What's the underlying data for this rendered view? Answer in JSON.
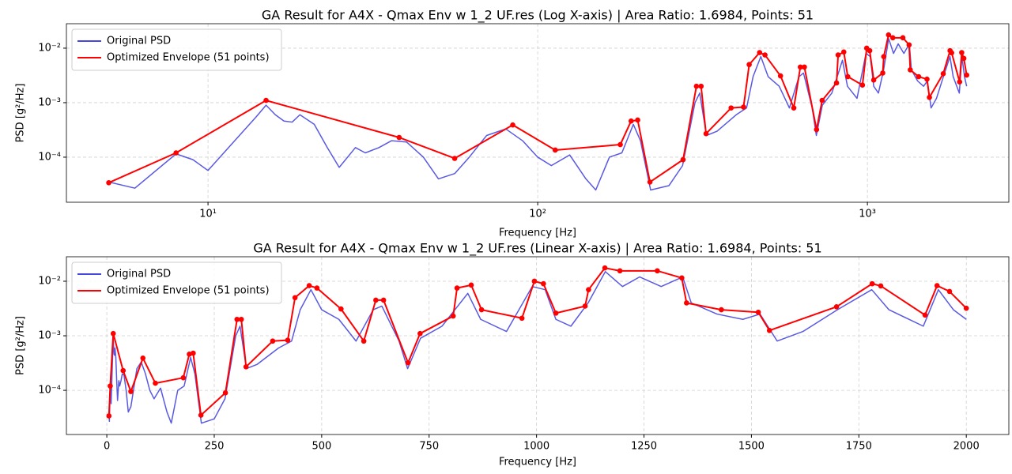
{
  "chart_data": [
    {
      "type": "line",
      "title": "GA Result for A4X - Qmax Env w 1_2 UF.res (Log X-axis) | Area Ratio: 1.6984, Points: 51",
      "x_label": "Frequency [Hz]",
      "y_label": "PSD [g²/Hz]",
      "x_scale": "log",
      "y_scale": "log",
      "grid": true,
      "legend": "upper left",
      "xlim": [
        3.72,
        2685
      ],
      "ylim": [
        1.49e-05,
        0.0281
      ],
      "xticks": [
        {
          "value": 10,
          "label": "10¹"
        },
        {
          "value": 100,
          "label": "10²"
        },
        {
          "value": 1000,
          "label": "10³"
        }
      ],
      "yticks": [
        {
          "value": 0.0001,
          "label": "10⁻⁴"
        },
        {
          "value": 0.001,
          "label": "10⁻³"
        },
        {
          "value": 0.01,
          "label": "10⁻²"
        }
      ],
      "series": [
        {
          "name": "Original PSD",
          "color": "#4747e0",
          "marker": false,
          "x": [
            5,
            6,
            8,
            9,
            10,
            14,
            15,
            16,
            17,
            18,
            19,
            21,
            23,
            25,
            28,
            30,
            33,
            36,
            40,
            45,
            50,
            56,
            62,
            70,
            80,
            90,
            100,
            110,
            125,
            140,
            150,
            165,
            180,
            195,
            205,
            220,
            250,
            275,
            300,
            310,
            325,
            350,
            400,
            430,
            450,
            475,
            500,
            540,
            580,
            620,
            640,
            680,
            700,
            730,
            780,
            810,
            840,
            870,
            930,
            990,
            1020,
            1045,
            1080,
            1120,
            1160,
            1200,
            1240,
            1290,
            1340,
            1360,
            1420,
            1480,
            1520,
            1560,
            1620,
            1700,
            1780,
            1820,
            1900,
            1935,
            1970,
            2000
          ],
          "values": [
            3.5e-05,
            2.7e-05,
            0.000115,
            9e-05,
            5.7e-05,
            0.00055,
            0.0009,
            0.0006,
            0.00046,
            0.00044,
            0.0006,
            0.0004,
            0.00015,
            6.5e-05,
            0.00015,
            0.00012,
            0.00015,
            0.0002,
            0.00019,
            0.0001,
            4e-05,
            5e-05,
            0.0001,
            0.00025,
            0.00033,
            0.0002,
            0.0001,
            7e-05,
            0.00011,
            4e-05,
            2.5e-05,
            0.0001,
            0.00012,
            0.0004,
            0.0002,
            2.5e-05,
            3e-05,
            7e-05,
            0.001,
            0.0015,
            0.00025,
            0.0003,
            0.0006,
            0.0008,
            0.003,
            0.007,
            0.003,
            0.002,
            0.0008,
            0.003,
            0.0035,
            0.0008,
            0.00025,
            0.0009,
            0.0015,
            0.003,
            0.006,
            0.002,
            0.0012,
            0.008,
            0.007,
            0.002,
            0.0015,
            0.004,
            0.015,
            0.008,
            0.012,
            0.008,
            0.012,
            0.004,
            0.0025,
            0.002,
            0.0025,
            0.0008,
            0.0012,
            0.003,
            0.007,
            0.003,
            0.0015,
            0.007,
            0.003,
            0.002
          ]
        },
        {
          "name": "Optimized Envelope (51 points)",
          "color": "#ff0000",
          "marker": true,
          "x": [
            5,
            8,
            15,
            38,
            56,
            84,
            113,
            178,
            192,
            201,
            219,
            276,
            303,
            313,
            324,
            386,
            421,
            438,
            471,
            489,
            545,
            598,
            626,
            644,
            701,
            729,
            806,
            815,
            848,
            872,
            966,
            995,
            1016,
            1045,
            1113,
            1121,
            1159,
            1194,
            1281,
            1338,
            1349,
            1430,
            1516,
            1542,
            1698,
            1781,
            1801,
            1904,
            1932,
            1961,
            2000
          ],
          "values": [
            3.4e-05,
            0.00012,
            0.0011,
            0.00023,
            9.5e-05,
            0.00039,
            0.000135,
            0.00017,
            0.00046,
            0.00048,
            3.5e-05,
            9e-05,
            0.002,
            0.002,
            0.00027,
            0.0008,
            0.00083,
            0.005,
            0.0083,
            0.0075,
            0.0031,
            0.0008,
            0.0045,
            0.0045,
            0.00032,
            0.0011,
            0.0023,
            0.0075,
            0.0085,
            0.003,
            0.0021,
            0.01,
            0.009,
            0.0026,
            0.0035,
            0.007,
            0.0175,
            0.0155,
            0.0155,
            0.0115,
            0.004,
            0.003,
            0.0027,
            0.00125,
            0.0034,
            0.009,
            0.0082,
            0.0024,
            0.0083,
            0.0065,
            0.0032
          ]
        }
      ]
    },
    {
      "type": "line",
      "title": "GA Result for A4X - Qmax Env w 1_2 UF.res (Linear X-axis) | Area Ratio: 1.6984, Points: 51",
      "x_label": "Frequency [Hz]",
      "y_label": "PSD [g²/Hz]",
      "x_scale": "linear",
      "y_scale": "log",
      "grid": true,
      "legend": "upper left",
      "xlim": [
        -94,
        2099
      ],
      "ylim": [
        1.55e-05,
        0.0281
      ],
      "xticks": [
        0,
        250,
        500,
        750,
        1000,
        1250,
        1500,
        1750,
        2000
      ],
      "yticks": [
        {
          "value": 0.0001,
          "label": "10⁻⁴"
        },
        {
          "value": 0.001,
          "label": "10⁻³"
        },
        {
          "value": 0.01,
          "label": "10⁻²"
        }
      ],
      "series": [
        {
          "name": "Original PSD",
          "color": "#4747e0",
          "marker": false,
          "x": [
            5,
            6,
            8,
            9,
            10,
            14,
            15,
            16,
            17,
            18,
            19,
            21,
            23,
            25,
            28,
            30,
            33,
            36,
            40,
            45,
            50,
            56,
            62,
            70,
            80,
            90,
            100,
            110,
            125,
            140,
            150,
            165,
            180,
            195,
            205,
            220,
            250,
            275,
            300,
            310,
            325,
            350,
            400,
            430,
            450,
            475,
            500,
            540,
            580,
            620,
            640,
            680,
            700,
            730,
            780,
            810,
            840,
            870,
            930,
            990,
            1020,
            1045,
            1080,
            1120,
            1160,
            1200,
            1240,
            1290,
            1340,
            1360,
            1420,
            1480,
            1520,
            1560,
            1620,
            1700,
            1780,
            1820,
            1900,
            1935,
            1970,
            2000
          ],
          "values": [
            3.5e-05,
            2.7e-05,
            0.000115,
            9e-05,
            5.7e-05,
            0.00055,
            0.0009,
            0.0006,
            0.00046,
            0.00044,
            0.0006,
            0.0004,
            0.00015,
            6.5e-05,
            0.00015,
            0.00012,
            0.00015,
            0.0002,
            0.00019,
            0.0001,
            4e-05,
            5e-05,
            0.0001,
            0.00025,
            0.00033,
            0.0002,
            0.0001,
            7e-05,
            0.00011,
            4e-05,
            2.5e-05,
            0.0001,
            0.00012,
            0.0004,
            0.0002,
            2.5e-05,
            3e-05,
            7e-05,
            0.001,
            0.0015,
            0.00025,
            0.0003,
            0.0006,
            0.0008,
            0.003,
            0.007,
            0.003,
            0.002,
            0.0008,
            0.003,
            0.0035,
            0.0008,
            0.00025,
            0.0009,
            0.0015,
            0.003,
            0.006,
            0.002,
            0.0012,
            0.008,
            0.007,
            0.002,
            0.0015,
            0.004,
            0.015,
            0.008,
            0.012,
            0.008,
            0.012,
            0.004,
            0.0025,
            0.002,
            0.0025,
            0.0008,
            0.0012,
            0.003,
            0.007,
            0.003,
            0.0015,
            0.007,
            0.003,
            0.002
          ]
        },
        {
          "name": "Optimized Envelope (51 points)",
          "color": "#ff0000",
          "marker": true,
          "x": [
            5,
            8,
            15,
            38,
            56,
            84,
            113,
            178,
            192,
            201,
            219,
            276,
            303,
            313,
            324,
            386,
            421,
            438,
            471,
            489,
            545,
            598,
            626,
            644,
            701,
            729,
            806,
            815,
            848,
            872,
            966,
            995,
            1016,
            1045,
            1113,
            1121,
            1159,
            1194,
            1281,
            1338,
            1349,
            1430,
            1516,
            1542,
            1698,
            1781,
            1801,
            1904,
            1932,
            1961,
            2000
          ],
          "values": [
            3.4e-05,
            0.00012,
            0.0011,
            0.00023,
            9.5e-05,
            0.00039,
            0.000135,
            0.00017,
            0.00046,
            0.00048,
            3.5e-05,
            9e-05,
            0.002,
            0.002,
            0.00027,
            0.0008,
            0.00083,
            0.005,
            0.0083,
            0.0075,
            0.0031,
            0.0008,
            0.0045,
            0.0045,
            0.00032,
            0.0011,
            0.0023,
            0.0075,
            0.0085,
            0.003,
            0.0021,
            0.01,
            0.009,
            0.0026,
            0.0035,
            0.007,
            0.0175,
            0.0155,
            0.0155,
            0.0115,
            0.004,
            0.003,
            0.0027,
            0.00125,
            0.0034,
            0.009,
            0.0082,
            0.0024,
            0.0083,
            0.0065,
            0.0032
          ]
        }
      ]
    }
  ]
}
